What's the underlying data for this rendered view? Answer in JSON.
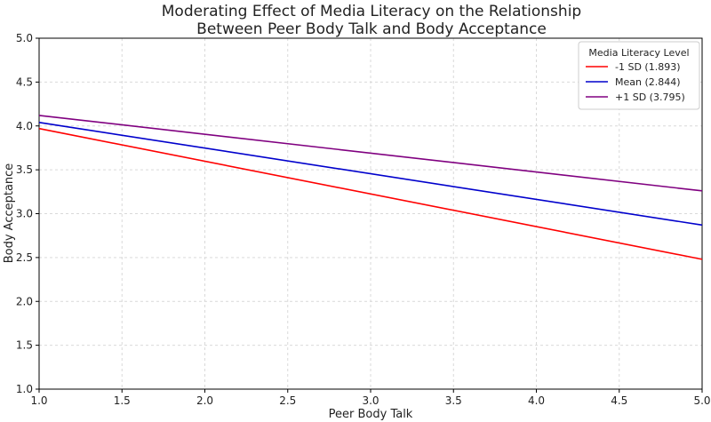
{
  "chart_data": {
    "type": "line",
    "title": "Moderating Effect of Media Literacy on the Relationship\nBetween Peer Body Talk and Body Acceptance",
    "xlabel": "Peer Body Talk",
    "ylabel": "Body Acceptance",
    "xlim": [
      1.0,
      5.0
    ],
    "ylim": [
      1.0,
      5.0
    ],
    "xticks": [
      "1.0",
      "1.5",
      "2.0",
      "2.5",
      "3.0",
      "3.5",
      "4.0",
      "4.5",
      "5.0"
    ],
    "yticks": [
      "1.0",
      "1.5",
      "2.0",
      "2.5",
      "3.0",
      "3.5",
      "4.0",
      "4.5",
      "5.0"
    ],
    "grid": true,
    "legend": {
      "title": "Media Literacy Level",
      "placement": "top-right"
    },
    "series": [
      {
        "name": "-1 SD (1.893)",
        "color": "#ff0000",
        "x": [
          1.0,
          5.0
        ],
        "y": [
          3.97,
          2.48
        ]
      },
      {
        "name": "Mean (2.844)",
        "color": "#0000cc",
        "x": [
          1.0,
          5.0
        ],
        "y": [
          4.04,
          2.87
        ]
      },
      {
        "name": "+1 SD (3.795)",
        "color": "#800080",
        "x": [
          1.0,
          5.0
        ],
        "y": [
          4.12,
          3.26
        ]
      }
    ]
  }
}
